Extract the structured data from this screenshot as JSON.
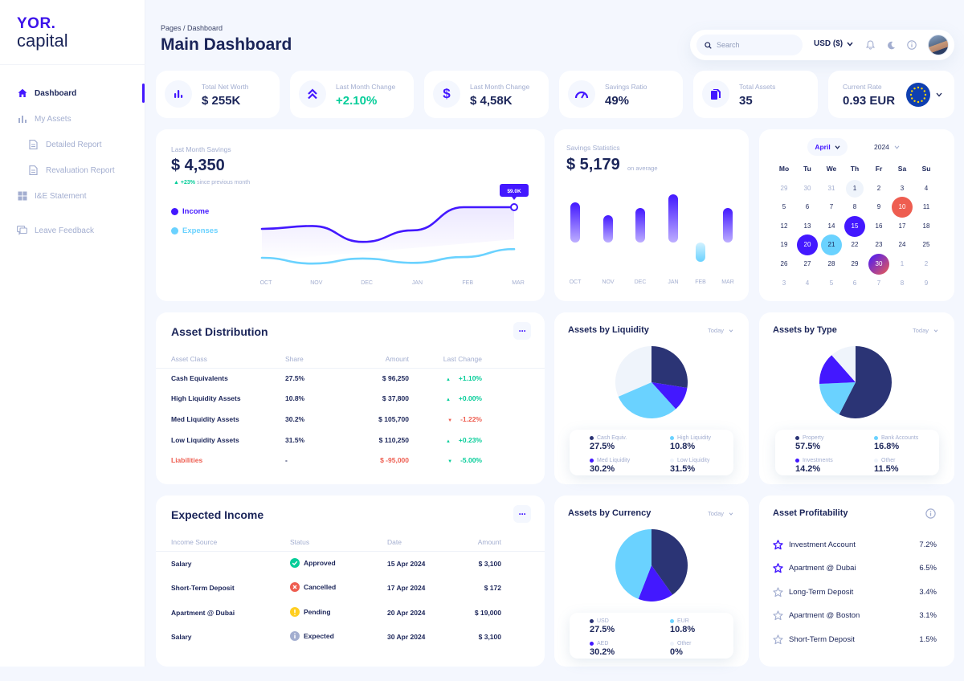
{
  "brand": {
    "line1": "YOR.",
    "line2": "capital"
  },
  "sidebar": {
    "items": [
      {
        "label": "Dashboard",
        "icon": "home-icon"
      },
      {
        "label": "My Assets",
        "icon": "bar-chart-icon"
      },
      {
        "label": "Detailed Report",
        "icon": "document-icon"
      },
      {
        "label": "Revaluation Report",
        "icon": "document-icon"
      },
      {
        "label": "I&E Statement",
        "icon": "grid-icon"
      },
      {
        "label": "Leave Feedback",
        "icon": "feedback-icon"
      }
    ]
  },
  "header": {
    "breadcrumb": "Pages / Dashboard",
    "title": "Main Dashboard"
  },
  "topbar": {
    "search_placeholder": "Search",
    "currency": "USD ($)"
  },
  "stats": [
    {
      "label": "Total Net Worth",
      "value": "$ 255K",
      "icon": "bar-chart-icon"
    },
    {
      "label": "Last Month Change",
      "value": "+2.10%",
      "icon": "double-chevron-up-icon"
    },
    {
      "label": "Last Month Change",
      "value": "$ 4,58K",
      "icon": "dollar-icon"
    },
    {
      "label": "Savings Ratio",
      "value": "49%",
      "icon": "gauge-icon"
    },
    {
      "label": "Total Assets",
      "value": "35",
      "icon": "files-icon"
    },
    {
      "label": "Current Rate",
      "value": "0.93 EUR",
      "icon": "eu-flag-icon"
    }
  ],
  "savings": {
    "label": "Last Month Savings",
    "value": "$ 4,350",
    "change": "+23%",
    "change_note": "since previous month",
    "tooltip": "$9.0K",
    "legend_income": "Income",
    "legend_expenses": "Expenses",
    "chart_data": {
      "type": "line",
      "categories": [
        "OCT",
        "NOV",
        "DEC",
        "JAN",
        "FEB",
        "MAR"
      ],
      "series": [
        {
          "name": "Income",
          "values": [
            6.0,
            6.4,
            4.2,
            5.8,
            9.0,
            9.0
          ]
        },
        {
          "name": "Expenses",
          "values": [
            2.0,
            1.2,
            1.9,
            1.3,
            2.1,
            3.2
          ]
        }
      ]
    }
  },
  "stats_card": {
    "label": "Savings Statistics",
    "value": "$ 5,179",
    "note": "on average",
    "chart_data": {
      "type": "bar",
      "categories": [
        "OCT",
        "NOV",
        "DEC",
        "JAN",
        "FEB",
        "MAR"
      ],
      "values": [
        50,
        34,
        43,
        60,
        -24,
        43
      ]
    }
  },
  "calendar": {
    "month": "April",
    "year": "2024",
    "weekdays": [
      "Mo",
      "Tu",
      "We",
      "Th",
      "Fr",
      "Sa",
      "Su"
    ],
    "weeks": [
      [
        "29",
        "30",
        "31",
        "1",
        "2",
        "3",
        "4"
      ],
      [
        "5",
        "6",
        "7",
        "8",
        "9",
        "10",
        "11"
      ],
      [
        "12",
        "13",
        "14",
        "15",
        "16",
        "17",
        "18"
      ],
      [
        "19",
        "20",
        "21",
        "22",
        "23",
        "24",
        "25"
      ],
      [
        "26",
        "27",
        "28",
        "29",
        "30",
        "1",
        "2"
      ],
      [
        "3",
        "4",
        "5",
        "6",
        "7",
        "8",
        "9"
      ]
    ]
  },
  "asset_distribution": {
    "title": "Asset Distribution",
    "columns": [
      "Asset Class",
      "Share",
      "Amount",
      "Last Change"
    ],
    "rows": [
      {
        "cls": "Cash Equivalents",
        "share": "27.5%",
        "amount": "$ 96,250",
        "change": "+1.10%"
      },
      {
        "cls": "High Liquidity Assets",
        "share": "10.8%",
        "amount": "$ 37,800",
        "change": "+0.00%"
      },
      {
        "cls": "Med Liquidity Assets",
        "share": "30.2%",
        "amount": "$ 105,700",
        "change": "-1.22%"
      },
      {
        "cls": "Low Liquidity Assets",
        "share": "31.5%",
        "amount": "$ 110,250",
        "change": "+0.23%"
      },
      {
        "cls": "Liabilities",
        "share": "-",
        "amount": "$ -95,000",
        "change": "-5.00%"
      }
    ]
  },
  "liquidity": {
    "title": "Assets by Liquidity",
    "filter": "Today",
    "chart_data": {
      "type": "pie",
      "labels": [
        "Cash Equiv.",
        "High Liquidity",
        "Med Liquidity",
        "Low Liquidity"
      ],
      "values": [
        27.5,
        10.8,
        30.2,
        31.5
      ],
      "display": [
        "27.5%",
        "10.8%",
        "30.2%",
        "31.5%"
      ],
      "colors": [
        "#2b3475",
        "#4318ff",
        "#6ad2ff",
        "#eff4fb"
      ]
    }
  },
  "by_type": {
    "title": "Assets by Type",
    "filter": "Today",
    "chart_data": {
      "type": "pie",
      "labels": [
        "Property",
        "Bank Accounts",
        "Investments",
        "Other"
      ],
      "values": [
        57.5,
        16.8,
        14.2,
        11.5
      ],
      "display": [
        "57.5%",
        "16.8%",
        "14.2%",
        "11.5%"
      ],
      "colors": [
        "#2b3475",
        "#6ad2ff",
        "#4318ff",
        "#eff4fb"
      ]
    }
  },
  "income": {
    "title": "Expected Income",
    "columns": [
      "Income Source",
      "Status",
      "Date",
      "Amount"
    ],
    "rows": [
      {
        "source": "Salary",
        "status": "Approved",
        "date": "15 Apr 2024",
        "amount": "$ 3,100"
      },
      {
        "source": "Short-Term Deposit",
        "status": "Cancelled",
        "date": "17 Apr 2024",
        "amount": "$ 172"
      },
      {
        "source": "Apartment @ Dubai",
        "status": "Pending",
        "date": "20 Apr 2024",
        "amount": "$ 19,000"
      },
      {
        "source": "Salary",
        "status": "Expected",
        "date": "30 Apr 2024",
        "amount": "$ 3,100"
      }
    ]
  },
  "currency": {
    "title": "Assets by Currency",
    "filter": "Today",
    "chart_data": {
      "type": "pie",
      "labels": [
        "USD",
        "EUR",
        "AED",
        "Other"
      ],
      "values": [
        27.5,
        10.8,
        30.2,
        0
      ],
      "display": [
        "27.5%",
        "10.8%",
        "30.2%",
        "0%"
      ],
      "colors": [
        "#2b3475",
        "#4318ff",
        "#6ad2ff",
        "#eff4fb"
      ]
    }
  },
  "profitability": {
    "title": "Asset Profitability",
    "rows": [
      {
        "name": "Investment Account",
        "value": "7.2%"
      },
      {
        "name": "Apartment @ Dubai",
        "value": "6.5%"
      },
      {
        "name": "Long-Term Deposit",
        "value": "3.4%"
      },
      {
        "name": "Apartment @ Boston",
        "value": "3.1%"
      },
      {
        "name": "Short-Term Deposit",
        "value": "1.5%"
      }
    ]
  }
}
